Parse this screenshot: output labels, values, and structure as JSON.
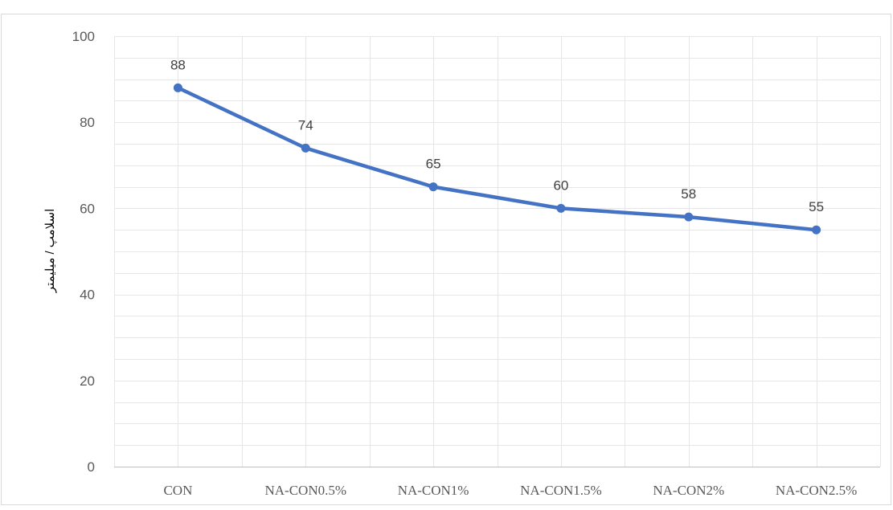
{
  "chart_data": {
    "type": "line",
    "title": "",
    "xlabel": "",
    "ylabel": "اسلامپ / میلیمتر",
    "categories": [
      "CON",
      "NA-CON0.5%",
      "NA-CON1%",
      "NA-CON1.5%",
      "NA-CON2%",
      "NA-CON2.5%"
    ],
    "series": [
      {
        "values": [
          88,
          74,
          65,
          60,
          58,
          55
        ],
        "color": "#4472C4"
      }
    ],
    "ylim": [
      0,
      100
    ],
    "yticks": [
      0,
      20,
      40,
      60,
      80,
      100
    ],
    "y_minor_step": 5,
    "grid": true,
    "data_labels": true,
    "legend": "none"
  }
}
